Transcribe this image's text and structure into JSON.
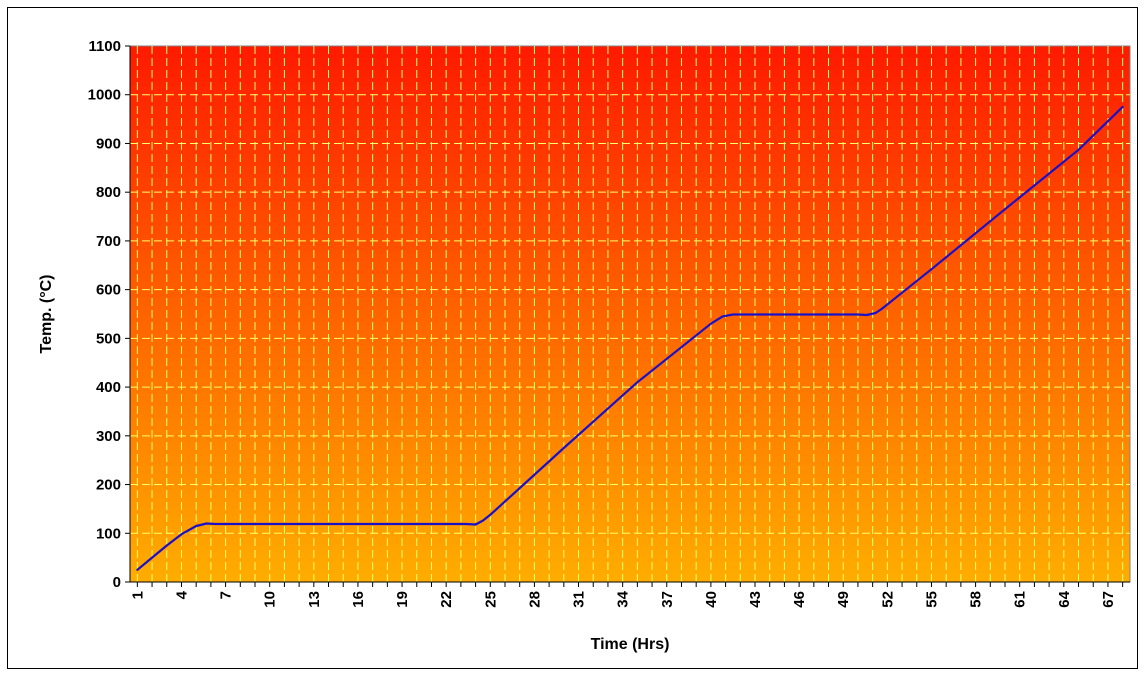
{
  "chart_data": {
    "type": "line",
    "title": "",
    "xlabel": "Time (Hrs)",
    "ylabel": "Temp. (°C)",
    "ylim": [
      0,
      1100
    ],
    "yticks": [
      0,
      100,
      200,
      300,
      400,
      500,
      600,
      700,
      800,
      900,
      1000,
      1100
    ],
    "xlim": [
      1,
      68
    ],
    "xticks": [
      1,
      4,
      7,
      10,
      13,
      16,
      19,
      22,
      25,
      28,
      31,
      34,
      37,
      40,
      43,
      46,
      49,
      52,
      55,
      58,
      61,
      64,
      67
    ],
    "grid": true,
    "legend": "none",
    "background": {
      "top": "#ff1a00",
      "bottom": "#ffad00"
    },
    "gridline_color": "#ffff66",
    "series": [
      {
        "color": "#1a10c8",
        "points": [
          [
            1,
            25
          ],
          [
            2,
            50
          ],
          [
            3,
            75
          ],
          [
            4,
            98
          ],
          [
            5,
            115
          ],
          [
            5.7,
            120
          ],
          [
            6.3,
            119
          ],
          [
            10,
            119
          ],
          [
            15,
            119
          ],
          [
            20,
            119
          ],
          [
            23.3,
            119
          ],
          [
            24.0,
            118
          ],
          [
            24.5,
            126
          ],
          [
            25,
            138
          ],
          [
            30,
            275
          ],
          [
            35,
            410
          ],
          [
            40,
            530
          ],
          [
            40.8,
            545
          ],
          [
            41.5,
            549
          ],
          [
            45,
            549
          ],
          [
            50,
            549
          ],
          [
            50.6,
            548
          ],
          [
            51.2,
            552
          ],
          [
            51.6,
            560
          ],
          [
            55,
            642
          ],
          [
            60,
            765
          ],
          [
            65,
            887
          ],
          [
            68,
            975
          ]
        ]
      }
    ]
  }
}
